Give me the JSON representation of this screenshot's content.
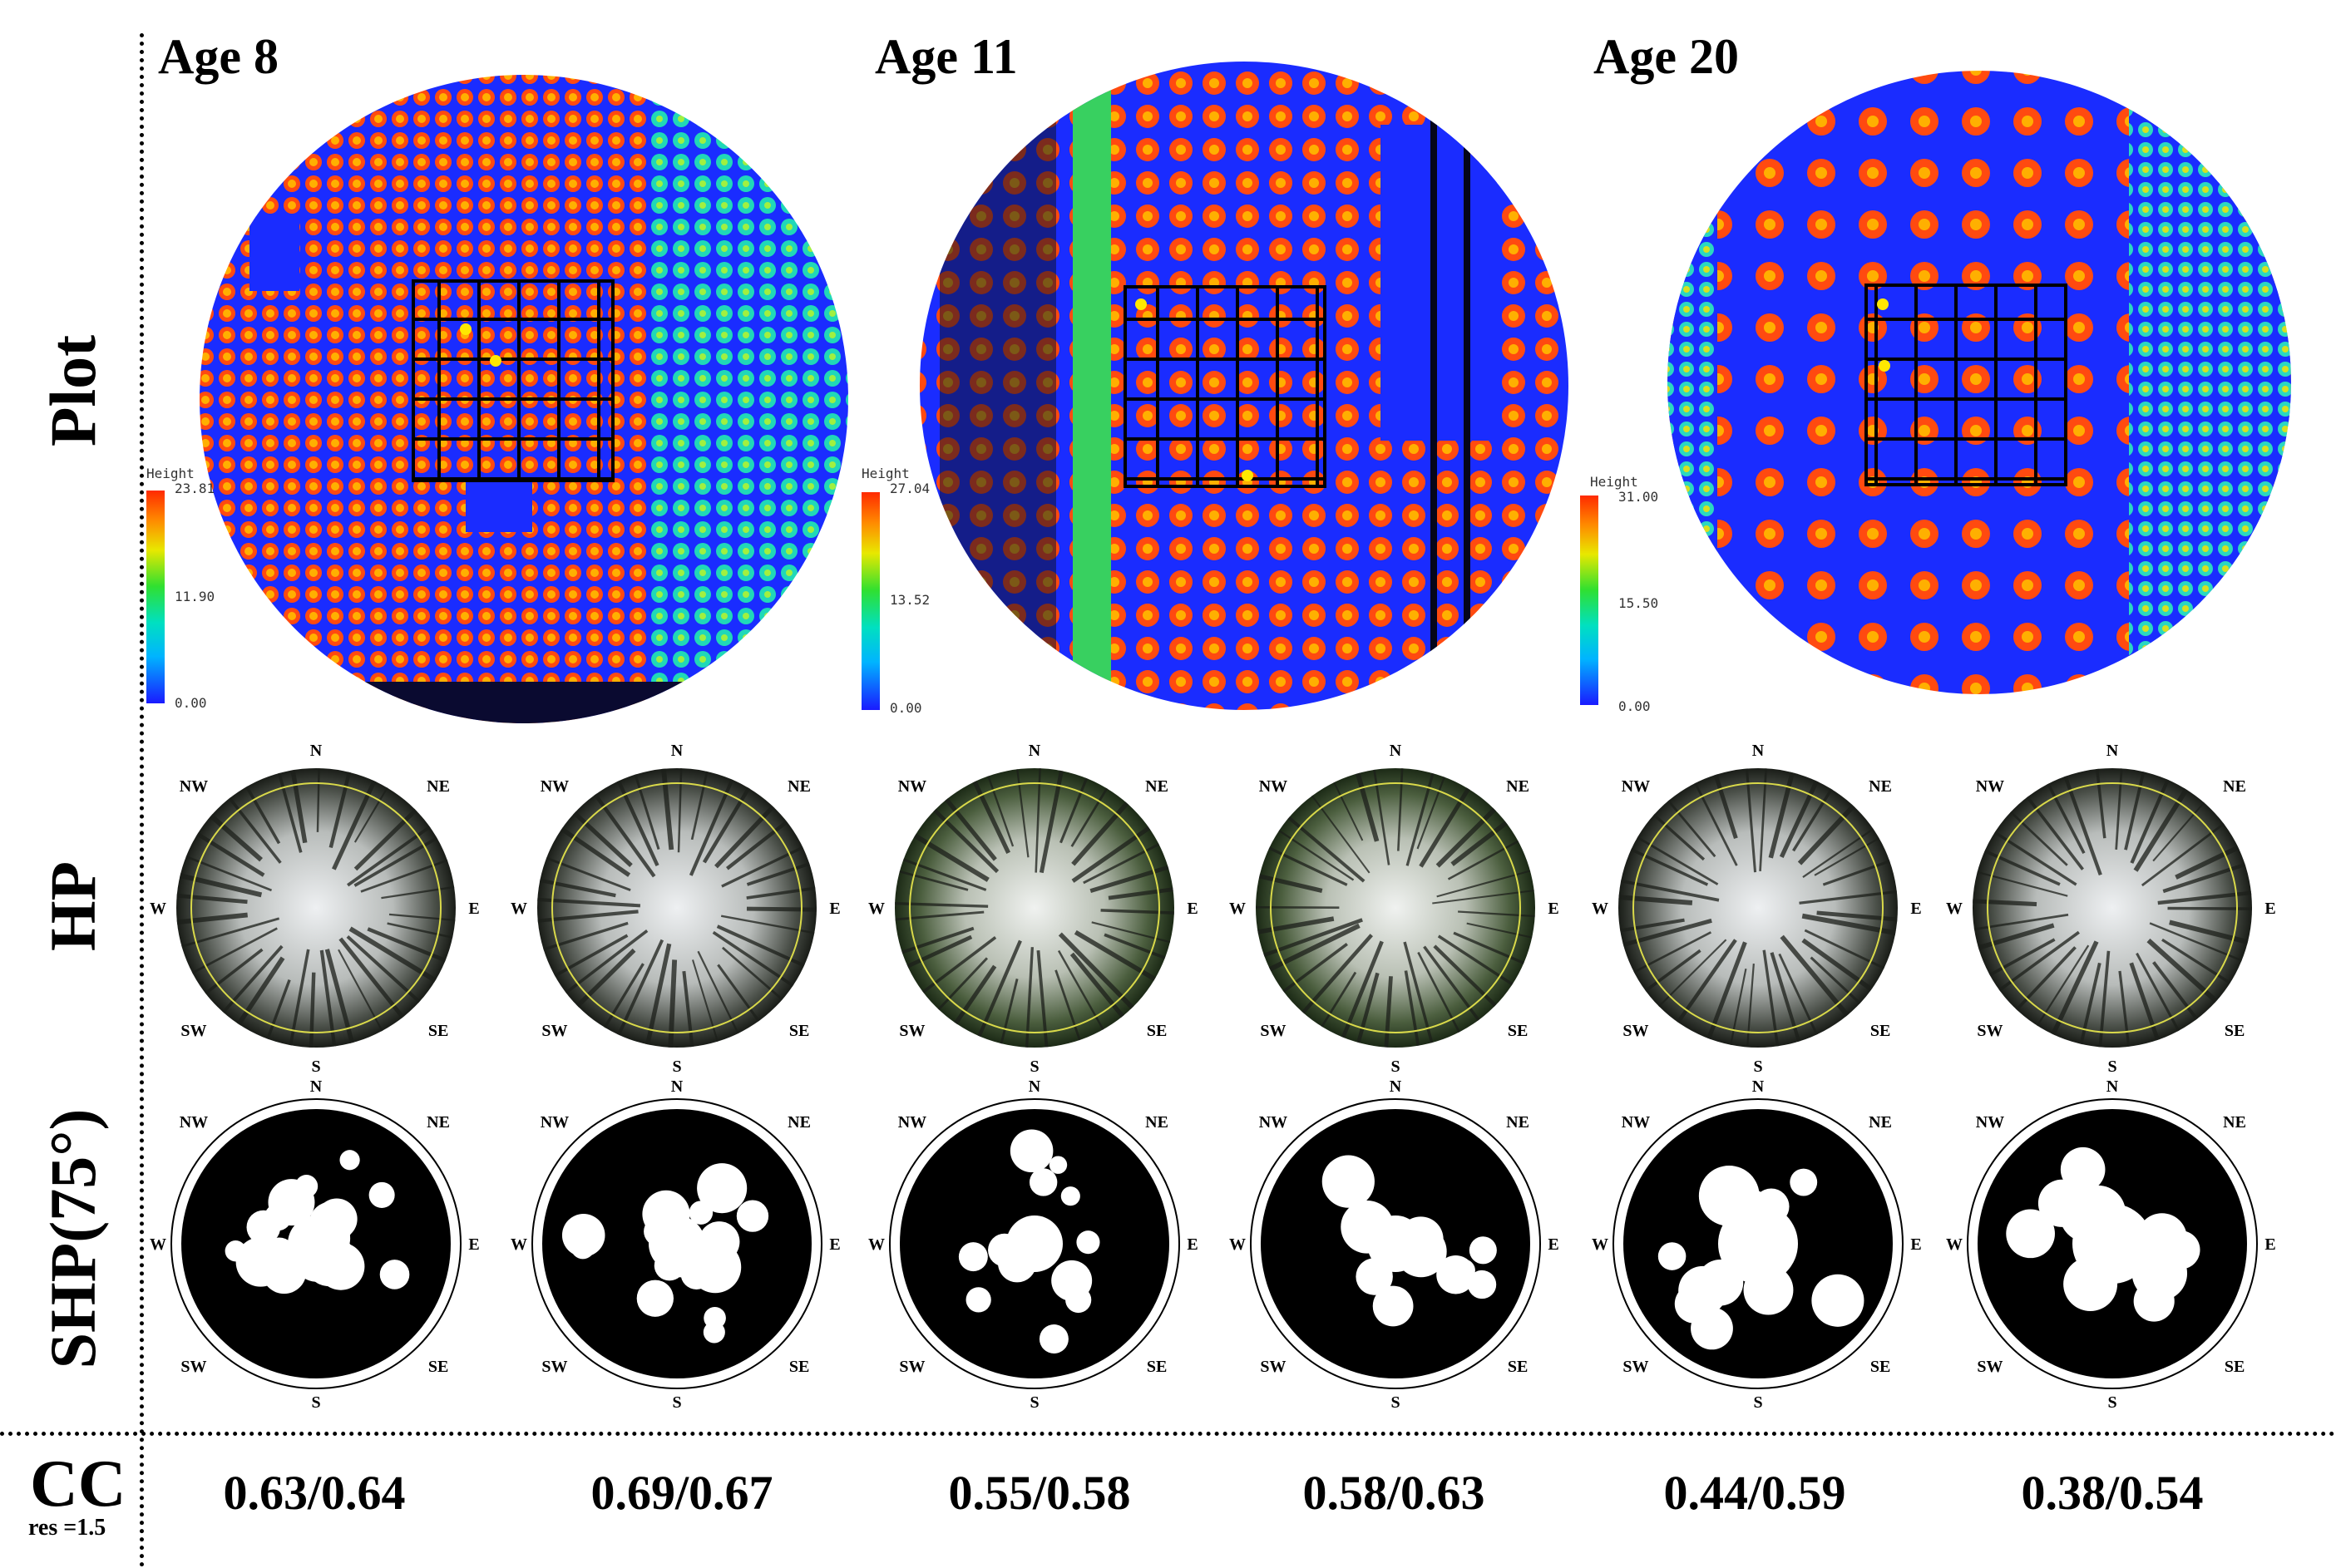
{
  "row_labels": {
    "plot": "Plot",
    "hp": "HP",
    "shp": "SHP(75°)"
  },
  "ages": [
    "Age 8",
    "Age 11",
    "Age 20"
  ],
  "colorbars": [
    {
      "title": "Height",
      "max": "23.81",
      "mid": "11.90",
      "min": "0.00"
    },
    {
      "title": "Height",
      "max": "27.04",
      "mid": "13.52",
      "min": "0.00"
    },
    {
      "title": "Height",
      "max": "31.00",
      "mid": "15.50",
      "min": "0.00"
    }
  ],
  "directions": {
    "n": "N",
    "ne": "NE",
    "e": "E",
    "se": "SE",
    "s": "S",
    "sw": "SW",
    "w": "W",
    "nw": "NW"
  },
  "cc": {
    "label": "CC",
    "sub": "res =1.5",
    "values": [
      "0.63/0.64",
      "0.69/0.67",
      "0.55/0.58",
      "0.58/0.63",
      "0.44/0.59",
      "0.38/0.54"
    ]
  },
  "colors": {
    "ground": "#1a2cff",
    "canopy_high": "#ff3a00",
    "canopy_mid": "#ff9a00",
    "canopy_low": "#2ee0a0",
    "sky": "#e6e9ec",
    "foliage": "#1b1f1b"
  }
}
